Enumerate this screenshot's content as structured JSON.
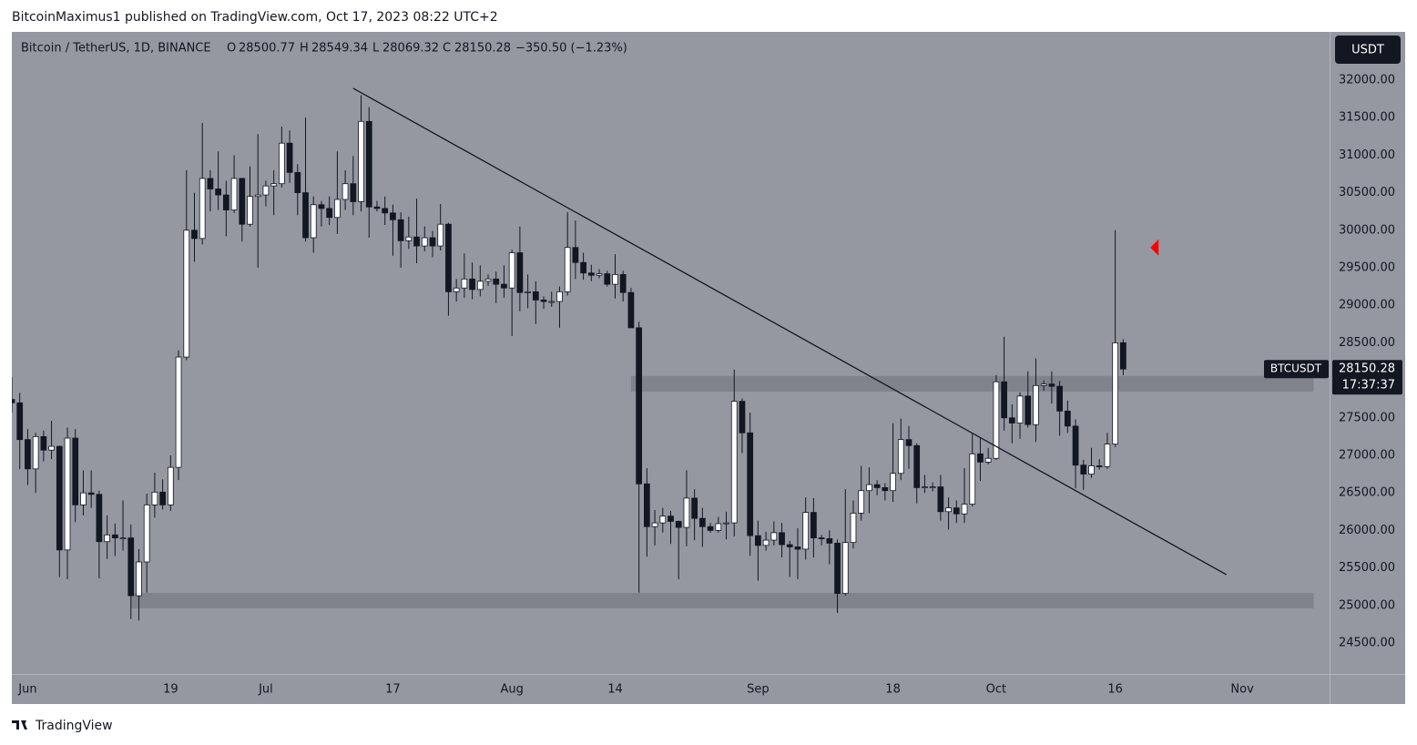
{
  "header": {
    "publisher": "BitcoinMaximus1 published on TradingView.com, Oct 17, 2023 08:22 UTC+2"
  },
  "legend": {
    "symbol": "Bitcoin / TetherUS, 1D, BINANCE",
    "o_label": "O",
    "open": 28500.77,
    "h_label": "H",
    "high": 28549.34,
    "l_label": "L",
    "low": 28069.32,
    "c_label": "C",
    "close": 28150.28,
    "change": "−350.50 (−1.23%)"
  },
  "price_scale": {
    "currency": "USDT",
    "symbol_tag": "BTCUSDT",
    "last_price": 28150.28,
    "countdown": "17:37:37"
  },
  "footer": {
    "brand": "TradingView"
  },
  "chart_data": {
    "type": "candlestick",
    "up_color": "#ffffff",
    "down_color": "#131722",
    "background": "#9598a1",
    "grid": false,
    "xlim": [
      "2023-05-30",
      "2023-11-12"
    ],
    "ylim": [
      24087,
      32643
    ],
    "xticks": [
      {
        "value": "2023-06-01",
        "label": "Jun"
      },
      {
        "value": "2023-06-19",
        "label": "19"
      },
      {
        "value": "2023-07-01",
        "label": "Jul"
      },
      {
        "value": "2023-07-17",
        "label": "17"
      },
      {
        "value": "2023-08-01",
        "label": "Aug"
      },
      {
        "value": "2023-08-14",
        "label": "14"
      },
      {
        "value": "2023-09-01",
        "label": "Sep"
      },
      {
        "value": "2023-09-18",
        "label": "18"
      },
      {
        "value": "2023-10-01",
        "label": "Oct"
      },
      {
        "value": "2023-10-16",
        "label": "16"
      },
      {
        "value": "2023-11-01",
        "label": "Nov"
      }
    ],
    "yticks": [
      {
        "value": 24500,
        "label": "24500.00"
      },
      {
        "value": 25000,
        "label": "25000.00"
      },
      {
        "value": 25500,
        "label": "25500.00"
      },
      {
        "value": 26000,
        "label": "26000.00"
      },
      {
        "value": 26500,
        "label": "26500.00"
      },
      {
        "value": 27000,
        "label": "27000.00"
      },
      {
        "value": 27500,
        "label": "27500.00"
      },
      {
        "value": 28000,
        "label": "28000.00"
      },
      {
        "value": 28500,
        "label": "28500.00"
      },
      {
        "value": 29000,
        "label": "29000.00"
      },
      {
        "value": 29500,
        "label": "29500.00"
      },
      {
        "value": 30000,
        "label": "30000.00"
      },
      {
        "value": 30500,
        "label": "30500.00"
      },
      {
        "value": 31000,
        "label": "31000.00"
      },
      {
        "value": 31500,
        "label": "31500.00"
      },
      {
        "value": 32000,
        "label": "32000.00"
      }
    ],
    "x": [
      "2023-05-30",
      "2023-05-31",
      "2023-06-01",
      "2023-06-02",
      "2023-06-03",
      "2023-06-04",
      "2023-06-05",
      "2023-06-06",
      "2023-06-07",
      "2023-06-08",
      "2023-06-09",
      "2023-06-10",
      "2023-06-11",
      "2023-06-12",
      "2023-06-13",
      "2023-06-14",
      "2023-06-15",
      "2023-06-16",
      "2023-06-17",
      "2023-06-18",
      "2023-06-19",
      "2023-06-20",
      "2023-06-21",
      "2023-06-22",
      "2023-06-23",
      "2023-06-24",
      "2023-06-25",
      "2023-06-26",
      "2023-06-27",
      "2023-06-28",
      "2023-06-29",
      "2023-06-30",
      "2023-07-01",
      "2023-07-02",
      "2023-07-03",
      "2023-07-04",
      "2023-07-05",
      "2023-07-06",
      "2023-07-07",
      "2023-07-08",
      "2023-07-09",
      "2023-07-10",
      "2023-07-11",
      "2023-07-12",
      "2023-07-13",
      "2023-07-14",
      "2023-07-15",
      "2023-07-16",
      "2023-07-17",
      "2023-07-18",
      "2023-07-19",
      "2023-07-20",
      "2023-07-21",
      "2023-07-22",
      "2023-07-23",
      "2023-07-24",
      "2023-07-25",
      "2023-07-26",
      "2023-07-27",
      "2023-07-28",
      "2023-07-29",
      "2023-07-30",
      "2023-07-31",
      "2023-08-01",
      "2023-08-02",
      "2023-08-03",
      "2023-08-04",
      "2023-08-05",
      "2023-08-06",
      "2023-08-07",
      "2023-08-08",
      "2023-08-09",
      "2023-08-10",
      "2023-08-11",
      "2023-08-12",
      "2023-08-13",
      "2023-08-14",
      "2023-08-15",
      "2023-08-16",
      "2023-08-17",
      "2023-08-18",
      "2023-08-19",
      "2023-08-20",
      "2023-08-21",
      "2023-08-22",
      "2023-08-23",
      "2023-08-24",
      "2023-08-25",
      "2023-08-26",
      "2023-08-27",
      "2023-08-28",
      "2023-08-29",
      "2023-08-30",
      "2023-08-31",
      "2023-09-01",
      "2023-09-02",
      "2023-09-03",
      "2023-09-04",
      "2023-09-05",
      "2023-09-06",
      "2023-09-07",
      "2023-09-08",
      "2023-09-09",
      "2023-09-10",
      "2023-09-11",
      "2023-09-12",
      "2023-09-13",
      "2023-09-14",
      "2023-09-15",
      "2023-09-16",
      "2023-09-17",
      "2023-09-18",
      "2023-09-19",
      "2023-09-20",
      "2023-09-21",
      "2023-09-22",
      "2023-09-23",
      "2023-09-24",
      "2023-09-25",
      "2023-09-26",
      "2023-09-27",
      "2023-09-28",
      "2023-09-29",
      "2023-09-30",
      "2023-10-01",
      "2023-10-02",
      "2023-10-03",
      "2023-10-04",
      "2023-10-05",
      "2023-10-06",
      "2023-10-07",
      "2023-10-08",
      "2023-10-09",
      "2023-10-10",
      "2023-10-11",
      "2023-10-12",
      "2023-10-13",
      "2023-10-14",
      "2023-10-15",
      "2023-10-16",
      "2023-10-17"
    ],
    "open": [
      27745,
      27700,
      27210,
      26820,
      27250,
      27070,
      27120,
      25740,
      27230,
      26340,
      26500,
      26480,
      25850,
      25940,
      25900,
      25900,
      25130,
      25580,
      26340,
      26510,
      26340,
      26840,
      28310,
      30000,
      29890,
      30690,
      30550,
      30470,
      30270,
      30690,
      30080,
      30450,
      30470,
      30590,
      30620,
      31160,
      30770,
      30500,
      29900,
      30340,
      30290,
      30170,
      30410,
      30620,
      30380,
      31450,
      30310,
      30290,
      30230,
      30140,
      29860,
      29910,
      29790,
      29900,
      29790,
      30080,
      29180,
      29230,
      29350,
      29210,
      29320,
      29350,
      29280,
      29230,
      29700,
      29170,
      29180,
      29070,
      29050,
      29050,
      29180,
      29770,
      29570,
      29430,
      29400,
      29420,
      29280,
      29410,
      29170,
      28700,
      26620,
      26050,
      26100,
      26190,
      26120,
      26040,
      26430,
      26160,
      26050,
      26000,
      26090,
      26100,
      27720,
      27300,
      25930,
      25800,
      25870,
      25970,
      25810,
      25780,
      25750,
      26240,
      25900,
      25890,
      25830,
      25160,
      25840,
      26230,
      26530,
      26610,
      26570,
      26530,
      26760,
      27210,
      27130,
      26570,
      26580,
      26580,
      26250,
      26300,
      26220,
      26350,
      27020,
      26910,
      26960,
      27980,
      27500,
      27430,
      27790,
      27410,
      27930,
      27950,
      27920,
      27590,
      27390,
      26870,
      26750,
      26860,
      26850,
      27150,
      28500.77
    ],
    "high": [
      28044,
      27834,
      27350,
      27300,
      27330,
      27460,
      27130,
      27370,
      27350,
      26800,
      26800,
      26530,
      26200,
      26090,
      26400,
      26080,
      25750,
      26490,
      26770,
      26680,
      27000,
      28400,
      30800,
      30500,
      31430,
      30800,
      31050,
      30660,
      31000,
      30700,
      30850,
      31280,
      30660,
      30800,
      31380,
      31330,
      30880,
      31500,
      30450,
      30390,
      30450,
      31050,
      30800,
      30990,
      31800,
      31640,
      30390,
      30450,
      30340,
      30240,
      30180,
      30420,
      30050,
      29990,
      30350,
      30100,
      29350,
      29690,
      29570,
      29530,
      29410,
      29450,
      29530,
      29740,
      30050,
      29410,
      29320,
      29120,
      29180,
      29250,
      30240,
      30130,
      29700,
      29540,
      29480,
      29460,
      29680,
      29460,
      29230,
      28780,
      26830,
      26270,
      26300,
      26260,
      26130,
      26800,
      26550,
      26300,
      26100,
      26180,
      26250,
      28140,
      27760,
      27570,
      26130,
      25980,
      26120,
      26100,
      25860,
      26030,
      26440,
      26430,
      25940,
      26000,
      25880,
      26550,
      26400,
      26860,
      26840,
      26670,
      26630,
      27430,
      27490,
      27390,
      27160,
      26740,
      26640,
      26740,
      26440,
      26400,
      26830,
      27300,
      27230,
      27100,
      28070,
      28580,
      27680,
      27840,
      28120,
      28290,
      28000,
      28120,
      27990,
      27730,
      27480,
      26940,
      27100,
      26950,
      27300,
      30000,
      28549.34
    ],
    "low": [
      27570,
      26816,
      26605,
      26500,
      26920,
      26950,
      25380,
      25350,
      26110,
      26200,
      26300,
      25360,
      25620,
      25660,
      25730,
      24820,
      24800,
      25170,
      26170,
      26280,
      26260,
      26670,
      28270,
      29580,
      29810,
      30250,
      30270,
      29920,
      30230,
      29850,
      30050,
      29500,
      30320,
      30200,
      30570,
      30630,
      30200,
      29850,
      29700,
      30050,
      30070,
      29950,
      30270,
      30200,
      30250,
      29900,
      30250,
      30070,
      29660,
      29500,
      29750,
      29560,
      29720,
      29640,
      29730,
      28860,
      29050,
      29100,
      29080,
      29120,
      29260,
      29030,
      29100,
      28590,
      28920,
      28960,
      28750,
      28950,
      28980,
      28700,
      29130,
      29350,
      29340,
      29320,
      29360,
      29250,
      29090,
      29050,
      28720,
      25170,
      25650,
      25800,
      25970,
      25820,
      25350,
      25790,
      25870,
      25780,
      25970,
      25970,
      25880,
      25920,
      27030,
      25660,
      25330,
      25730,
      25800,
      25640,
      25380,
      25350,
      25610,
      25640,
      25800,
      25550,
      24900,
      25130,
      25760,
      26130,
      26230,
      26470,
      26400,
      26380,
      26670,
      26820,
      26360,
      26500,
      26520,
      26130,
      26010,
      26100,
      26100,
      26320,
      26660,
      26880,
      26940,
      27330,
      27160,
      27220,
      27370,
      27180,
      27860,
      27690,
      27260,
      27300,
      26560,
      26540,
      26700,
      26810,
      26820,
      27110,
      28069.32
    ],
    "close": [
      27700,
      27210,
      26820,
      27250,
      27070,
      27120,
      25740,
      27230,
      26340,
      26500,
      26480,
      25850,
      25940,
      25900,
      25900,
      25130,
      25580,
      26340,
      26510,
      26340,
      26840,
      28310,
      30000,
      29890,
      30690,
      30550,
      30470,
      30270,
      30690,
      30080,
      30450,
      30470,
      30590,
      30620,
      31160,
      30770,
      30500,
      29900,
      30340,
      30290,
      30170,
      30410,
      30620,
      30380,
      31450,
      30310,
      30290,
      30230,
      30140,
      29860,
      29910,
      29790,
      29900,
      29790,
      30080,
      29180,
      29230,
      29350,
      29210,
      29320,
      29350,
      29280,
      29230,
      29700,
      29170,
      29180,
      29070,
      29050,
      29050,
      29180,
      29770,
      29570,
      29430,
      29400,
      29420,
      29280,
      29410,
      29170,
      28700,
      26620,
      26050,
      26100,
      26190,
      26120,
      26040,
      26430,
      26160,
      26050,
      26000,
      26090,
      26100,
      27720,
      27300,
      25930,
      25800,
      25870,
      25970,
      25810,
      25780,
      25750,
      26240,
      25900,
      25890,
      25830,
      25160,
      25840,
      26230,
      26530,
      26610,
      26570,
      26530,
      26760,
      27210,
      27130,
      26570,
      26580,
      26580,
      26250,
      26300,
      26220,
      26350,
      27020,
      26910,
      26960,
      27980,
      27500,
      27430,
      27790,
      27410,
      27930,
      27950,
      27920,
      27590,
      27390,
      26870,
      26750,
      26860,
      26850,
      27150,
      28500,
      28150.28
    ],
    "zones": [
      {
        "from": "2023-08-16",
        "to": "2023-11-10",
        "top": 28058,
        "bottom": 27850,
        "color": "#80838c"
      },
      {
        "from": "2023-06-14",
        "to": "2023-11-10",
        "top": 25167,
        "bottom": 24961,
        "color": "#80838c"
      }
    ],
    "trendline": {
      "x": [
        "2023-07-12",
        "2023-10-30"
      ],
      "y": [
        31891,
        25410
      ],
      "color": "#131722"
    },
    "marker": {
      "x": "2023-10-21",
      "y": 29770,
      "color": "#ff0000"
    }
  }
}
